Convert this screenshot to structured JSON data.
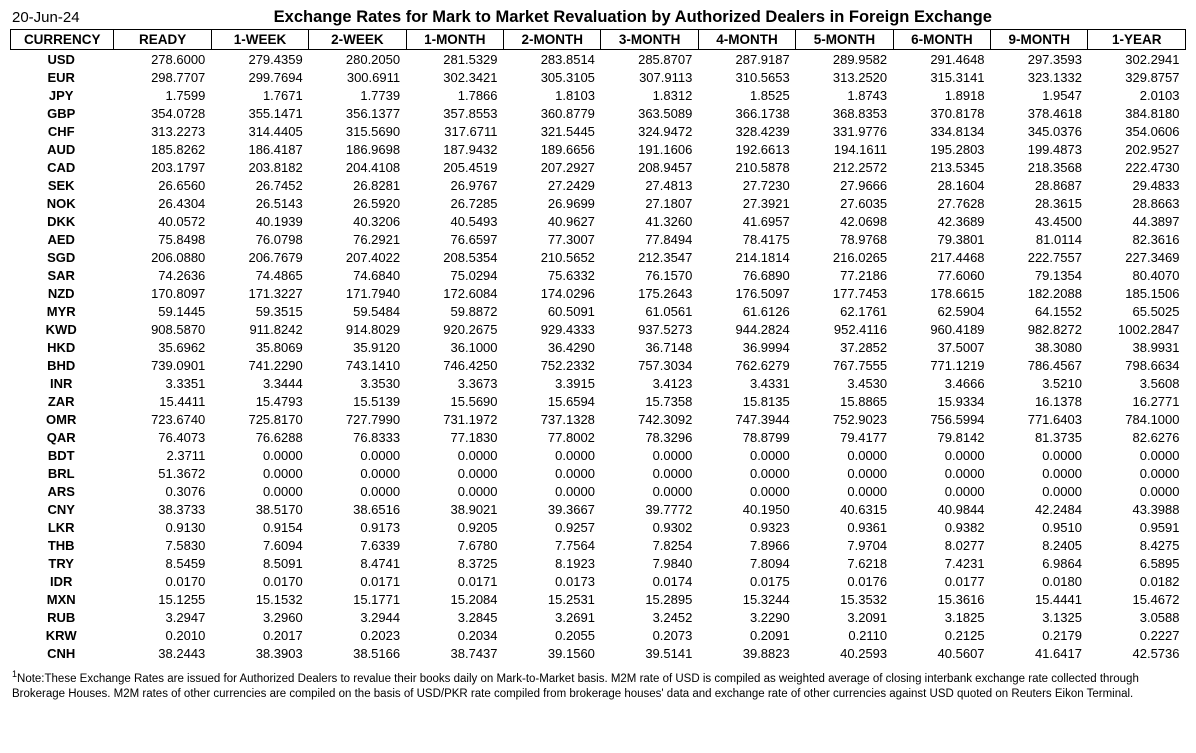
{
  "date": "20-Jun-24",
  "title": "Exchange Rates for Mark to Market Revaluation by Authorized Dealers in Foreign Exchange",
  "columns": [
    "CURRENCY",
    "READY",
    "1-WEEK",
    "2-WEEK",
    "1-MONTH",
    "2-MONTH",
    "3-MONTH",
    "4-MONTH",
    "5-MONTH",
    "6-MONTH",
    "9-MONTH",
    "1-YEAR"
  ],
  "rows": [
    [
      "USD",
      "278.6000",
      "279.4359",
      "280.2050",
      "281.5329",
      "283.8514",
      "285.8707",
      "287.9187",
      "289.9582",
      "291.4648",
      "297.3593",
      "302.2941"
    ],
    [
      "EUR",
      "298.7707",
      "299.7694",
      "300.6911",
      "302.3421",
      "305.3105",
      "307.9113",
      "310.5653",
      "313.2520",
      "315.3141",
      "323.1332",
      "329.8757"
    ],
    [
      "JPY",
      "1.7599",
      "1.7671",
      "1.7739",
      "1.7866",
      "1.8103",
      "1.8312",
      "1.8525",
      "1.8743",
      "1.8918",
      "1.9547",
      "2.0103"
    ],
    [
      "GBP",
      "354.0728",
      "355.1471",
      "356.1377",
      "357.8553",
      "360.8779",
      "363.5089",
      "366.1738",
      "368.8353",
      "370.8178",
      "378.4618",
      "384.8180"
    ],
    [
      "CHF",
      "313.2273",
      "314.4405",
      "315.5690",
      "317.6711",
      "321.5445",
      "324.9472",
      "328.4239",
      "331.9776",
      "334.8134",
      "345.0376",
      "354.0606"
    ],
    [
      "AUD",
      "185.8262",
      "186.4187",
      "186.9698",
      "187.9432",
      "189.6656",
      "191.1606",
      "192.6613",
      "194.1611",
      "195.2803",
      "199.4873",
      "202.9527"
    ],
    [
      "CAD",
      "203.1797",
      "203.8182",
      "204.4108",
      "205.4519",
      "207.2927",
      "208.9457",
      "210.5878",
      "212.2572",
      "213.5345",
      "218.3568",
      "222.4730"
    ],
    [
      "SEK",
      "26.6560",
      "26.7452",
      "26.8281",
      "26.9767",
      "27.2429",
      "27.4813",
      "27.7230",
      "27.9666",
      "28.1604",
      "28.8687",
      "29.4833"
    ],
    [
      "NOK",
      "26.4304",
      "26.5143",
      "26.5920",
      "26.7285",
      "26.9699",
      "27.1807",
      "27.3921",
      "27.6035",
      "27.7628",
      "28.3615",
      "28.8663"
    ],
    [
      "DKK",
      "40.0572",
      "40.1939",
      "40.3206",
      "40.5493",
      "40.9627",
      "41.3260",
      "41.6957",
      "42.0698",
      "42.3689",
      "43.4500",
      "44.3897"
    ],
    [
      "AED",
      "75.8498",
      "76.0798",
      "76.2921",
      "76.6597",
      "77.3007",
      "77.8494",
      "78.4175",
      "78.9768",
      "79.3801",
      "81.0114",
      "82.3616"
    ],
    [
      "SGD",
      "206.0880",
      "206.7679",
      "207.4022",
      "208.5354",
      "210.5652",
      "212.3547",
      "214.1814",
      "216.0265",
      "217.4468",
      "222.7557",
      "227.3469"
    ],
    [
      "SAR",
      "74.2636",
      "74.4865",
      "74.6840",
      "75.0294",
      "75.6332",
      "76.1570",
      "76.6890",
      "77.2186",
      "77.6060",
      "79.1354",
      "80.4070"
    ],
    [
      "NZD",
      "170.8097",
      "171.3227",
      "171.7940",
      "172.6084",
      "174.0296",
      "175.2643",
      "176.5097",
      "177.7453",
      "178.6615",
      "182.2088",
      "185.1506"
    ],
    [
      "MYR",
      "59.1445",
      "59.3515",
      "59.5484",
      "59.8872",
      "60.5091",
      "61.0561",
      "61.6126",
      "62.1761",
      "62.5904",
      "64.1552",
      "65.5025"
    ],
    [
      "KWD",
      "908.5870",
      "911.8242",
      "914.8029",
      "920.2675",
      "929.4333",
      "937.5273",
      "944.2824",
      "952.4116",
      "960.4189",
      "982.8272",
      "1002.2847"
    ],
    [
      "HKD",
      "35.6962",
      "35.8069",
      "35.9120",
      "36.1000",
      "36.4290",
      "36.7148",
      "36.9994",
      "37.2852",
      "37.5007",
      "38.3080",
      "38.9931"
    ],
    [
      "BHD",
      "739.0901",
      "741.2290",
      "743.1410",
      "746.4250",
      "752.2332",
      "757.3034",
      "762.6279",
      "767.7555",
      "771.1219",
      "786.4567",
      "798.6634"
    ],
    [
      "INR",
      "3.3351",
      "3.3444",
      "3.3530",
      "3.3673",
      "3.3915",
      "3.4123",
      "3.4331",
      "3.4530",
      "3.4666",
      "3.5210",
      "3.5608"
    ],
    [
      "ZAR",
      "15.4411",
      "15.4793",
      "15.5139",
      "15.5690",
      "15.6594",
      "15.7358",
      "15.8135",
      "15.8865",
      "15.9334",
      "16.1378",
      "16.2771"
    ],
    [
      "OMR",
      "723.6740",
      "725.8170",
      "727.7990",
      "731.1972",
      "737.1328",
      "742.3092",
      "747.3944",
      "752.9023",
      "756.5994",
      "771.6403",
      "784.1000"
    ],
    [
      "QAR",
      "76.4073",
      "76.6288",
      "76.8333",
      "77.1830",
      "77.8002",
      "78.3296",
      "78.8799",
      "79.4177",
      "79.8142",
      "81.3735",
      "82.6276"
    ],
    [
      "BDT",
      "2.3711",
      "0.0000",
      "0.0000",
      "0.0000",
      "0.0000",
      "0.0000",
      "0.0000",
      "0.0000",
      "0.0000",
      "0.0000",
      "0.0000"
    ],
    [
      "BRL",
      "51.3672",
      "0.0000",
      "0.0000",
      "0.0000",
      "0.0000",
      "0.0000",
      "0.0000",
      "0.0000",
      "0.0000",
      "0.0000",
      "0.0000"
    ],
    [
      "ARS",
      "0.3076",
      "0.0000",
      "0.0000",
      "0.0000",
      "0.0000",
      "0.0000",
      "0.0000",
      "0.0000",
      "0.0000",
      "0.0000",
      "0.0000"
    ],
    [
      "CNY",
      "38.3733",
      "38.5170",
      "38.6516",
      "38.9021",
      "39.3667",
      "39.7772",
      "40.1950",
      "40.6315",
      "40.9844",
      "42.2484",
      "43.3988"
    ],
    [
      "LKR",
      "0.9130",
      "0.9154",
      "0.9173",
      "0.9205",
      "0.9257",
      "0.9302",
      "0.9323",
      "0.9361",
      "0.9382",
      "0.9510",
      "0.9591"
    ],
    [
      "THB",
      "7.5830",
      "7.6094",
      "7.6339",
      "7.6780",
      "7.7564",
      "7.8254",
      "7.8966",
      "7.9704",
      "8.0277",
      "8.2405",
      "8.4275"
    ],
    [
      "TRY",
      "8.5459",
      "8.5091",
      "8.4741",
      "8.3725",
      "8.1923",
      "7.9840",
      "7.8094",
      "7.6218",
      "7.4231",
      "6.9864",
      "6.5895"
    ],
    [
      "IDR",
      "0.0170",
      "0.0170",
      "0.0171",
      "0.0171",
      "0.0173",
      "0.0174",
      "0.0175",
      "0.0176",
      "0.0177",
      "0.0180",
      "0.0182"
    ],
    [
      "MXN",
      "15.1255",
      "15.1532",
      "15.1771",
      "15.2084",
      "15.2531",
      "15.2895",
      "15.3244",
      "15.3532",
      "15.3616",
      "15.4441",
      "15.4672"
    ],
    [
      "RUB",
      "3.2947",
      "3.2960",
      "3.2944",
      "3.2845",
      "3.2691",
      "3.2452",
      "3.2290",
      "3.2091",
      "3.1825",
      "3.1325",
      "3.0588"
    ],
    [
      "KRW",
      "0.2010",
      "0.2017",
      "0.2023",
      "0.2034",
      "0.2055",
      "0.2073",
      "0.2091",
      "0.2110",
      "0.2125",
      "0.2179",
      "0.2227"
    ],
    [
      "CNH",
      "38.2443",
      "38.3903",
      "38.5166",
      "38.7437",
      "39.1560",
      "39.5141",
      "39.8823",
      "40.2593",
      "40.5607",
      "41.6417",
      "42.5736"
    ]
  ],
  "footnote": "Note:These Exchange Rates are issued for Authorized Dealers to revalue their books daily on Mark-to-Market basis. M2M rate of USD is compiled as weighted average of closing interbank exchange rate collected through Brokerage Houses. M2M rates of other currencies are compiled on the basis of USD/PKR rate compiled from brokerage houses' data and exchange rate of other currencies against USD quoted on Reuters Eikon Terminal.",
  "style": {
    "background_color": "#ffffff",
    "text_color": "#000000",
    "border_color": "#000000",
    "font_family": "Arial",
    "title_fontsize": 16.5,
    "header_fontsize": 13.5,
    "body_fontsize": 13,
    "footnote_fontsize": 11.5,
    "col_widths_pct": [
      8.8,
      8.29,
      8.29,
      8.29,
      8.29,
      8.29,
      8.29,
      8.29,
      8.29,
      8.29,
      8.29,
      8.29
    ]
  }
}
